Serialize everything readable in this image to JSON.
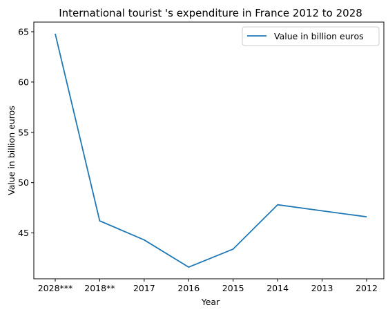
{
  "chart_data": {
    "type": "line",
    "title": "International tourist 's expenditure in France 2012 to 2028",
    "xlabel": "Year",
    "ylabel": "Value in billion euros",
    "categories": [
      "2028***",
      "2018**",
      "2017",
      "2016",
      "2015",
      "2014",
      "2013",
      "2012"
    ],
    "series": [
      {
        "name": "Value in billion euros",
        "values": [
          64.8,
          46.2,
          44.3,
          41.6,
          43.4,
          47.8,
          47.2,
          46.6
        ],
        "color": "#1f77b4"
      }
    ],
    "yticks": [
      45,
      50,
      55,
      60,
      65
    ],
    "ylim": [
      40.44,
      65.96
    ],
    "grid": false,
    "legend_position": "top-right"
  }
}
